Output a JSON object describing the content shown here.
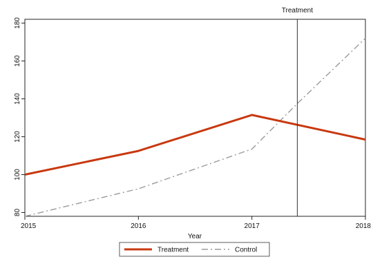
{
  "chart_data": {
    "type": "line",
    "xlabel": "Year",
    "ylabel": "",
    "xlim": [
      2015,
      2018
    ],
    "ylim": [
      78,
      182
    ],
    "x_ticks": [
      2015,
      2016,
      2017,
      2018
    ],
    "y_ticks": [
      80,
      100,
      120,
      140,
      160,
      180
    ],
    "grid": false,
    "series": [
      {
        "name": "Treatment",
        "x": [
          2015,
          2016,
          2017,
          2018
        ],
        "values": [
          100,
          112.5,
          131.5,
          118.5
        ],
        "color": "#c8380f",
        "style": "solid"
      },
      {
        "name": "Control",
        "x": [
          2015,
          2016,
          2017,
          2017.4,
          2018
        ],
        "values": [
          78,
          92.5,
          113.5,
          137.5,
          172
        ],
        "color": "#9a9a9a",
        "style": "dashed"
      }
    ],
    "annotations": [
      {
        "type": "vline",
        "x": 2017.4,
        "label": "Treatment",
        "color": "#333333"
      }
    ],
    "legend": {
      "position": "bottom",
      "entries": [
        "Treatment",
        "Control"
      ]
    }
  }
}
